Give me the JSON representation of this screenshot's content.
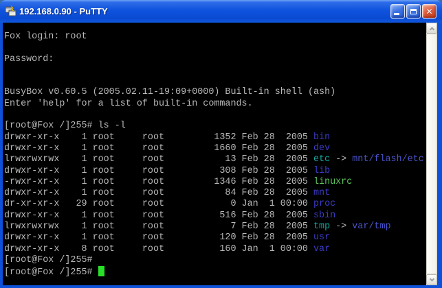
{
  "window": {
    "title": "192.168.0.90 - PuTTY",
    "app_icon": "putty-terminals-icon",
    "close_glyph": "✕"
  },
  "scrollbar": {
    "up_icon": "chevron-up",
    "down_icon": "chevron-down"
  },
  "terminal": {
    "bg": "#000000",
    "fg": "#b9b9b9",
    "palette": {
      "dir": "#3c3cc8",
      "sym": "#14aaa0",
      "lnk": "#4a55cc",
      "exe": "#5cc45c",
      "cursor": "#2adf2a"
    },
    "lines": [
      {
        "segs": [
          {
            "t": "Fox login: root"
          }
        ]
      },
      {
        "segs": []
      },
      {
        "segs": [
          {
            "t": "Password:"
          }
        ]
      },
      {
        "segs": []
      },
      {
        "segs": []
      },
      {
        "segs": [
          {
            "t": "BusyBox v0.60.5 (2005.02.11-19:09+0000) Built-in shell (ash)"
          }
        ]
      },
      {
        "segs": [
          {
            "t": "Enter 'help' for a list of built-in commands."
          }
        ]
      },
      {
        "segs": []
      },
      {
        "segs": [
          {
            "t": "[root@Fox /]255# ls -l"
          }
        ]
      },
      {
        "segs": [
          {
            "t": "drwxr-xr-x    1 root     root         1352 Feb 28  2005 "
          },
          {
            "t": "bin",
            "c": "dir"
          }
        ]
      },
      {
        "segs": [
          {
            "t": "drwxr-xr-x    1 root     root         1660 Feb 28  2005 "
          },
          {
            "t": "dev",
            "c": "dir"
          }
        ]
      },
      {
        "segs": [
          {
            "t": "lrwxrwxrwx    1 root     root           13 Feb 28  2005 "
          },
          {
            "t": "etc",
            "c": "sym"
          },
          {
            "t": " -> "
          },
          {
            "t": "mnt/flash/etc",
            "c": "lnk"
          }
        ]
      },
      {
        "segs": [
          {
            "t": "drwxr-xr-x    1 root     root          308 Feb 28  2005 "
          },
          {
            "t": "lib",
            "c": "dir"
          }
        ]
      },
      {
        "segs": [
          {
            "t": "-rwxr-xr-x    1 root     root         1346 Feb 28  2005 "
          },
          {
            "t": "linuxrc",
            "c": "exe"
          }
        ]
      },
      {
        "segs": [
          {
            "t": "drwxr-xr-x    1 root     root           84 Feb 28  2005 "
          },
          {
            "t": "mnt",
            "c": "dir"
          }
        ]
      },
      {
        "segs": [
          {
            "t": "dr-xr-xr-x   29 root     root            0 Jan  1 00:00 "
          },
          {
            "t": "proc",
            "c": "dir"
          }
        ]
      },
      {
        "segs": [
          {
            "t": "drwxr-xr-x    1 root     root          516 Feb 28  2005 "
          },
          {
            "t": "sbin",
            "c": "dir"
          }
        ]
      },
      {
        "segs": [
          {
            "t": "lrwxrwxrwx    1 root     root            7 Feb 28  2005 "
          },
          {
            "t": "tmp",
            "c": "sym"
          },
          {
            "t": " -> "
          },
          {
            "t": "var/tmp",
            "c": "lnk"
          }
        ]
      },
      {
        "segs": [
          {
            "t": "drwxr-xr-x    1 root     root          120 Feb 28  2005 "
          },
          {
            "t": "usr",
            "c": "dir"
          }
        ]
      },
      {
        "segs": [
          {
            "t": "drwxr-xr-x    8 root     root          160 Jan  1 00:00 "
          },
          {
            "t": "var",
            "c": "dir"
          }
        ]
      },
      {
        "segs": [
          {
            "t": "[root@Fox /]255#"
          }
        ]
      },
      {
        "segs": [
          {
            "t": "[root@Fox /]255# "
          }
        ],
        "cursor": true
      }
    ]
  }
}
